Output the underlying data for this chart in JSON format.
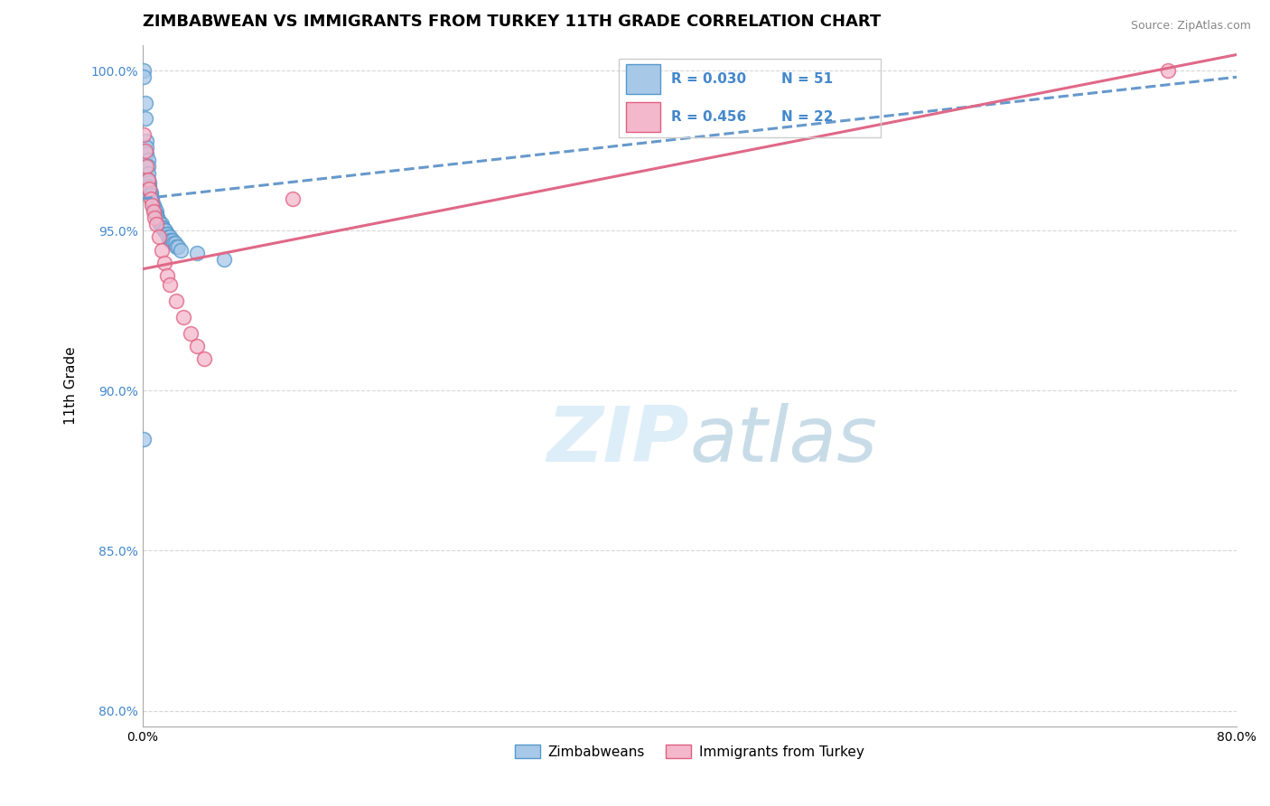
{
  "title": "ZIMBABWEAN VS IMMIGRANTS FROM TURKEY 11TH GRADE CORRELATION CHART",
  "source_text": "Source: ZipAtlas.com",
  "ylabel": "11th Grade",
  "r_zimbabwean": 0.03,
  "n_zimbabwean": 51,
  "r_turkey": 0.456,
  "n_turkey": 22,
  "xlim": [
    0.0,
    0.8
  ],
  "ylim": [
    0.795,
    1.008
  ],
  "ytick_labels": [
    "80.0%",
    "85.0%",
    "90.0%",
    "95.0%",
    "100.0%"
  ],
  "ytick_values": [
    0.8,
    0.85,
    0.9,
    0.95,
    1.0
  ],
  "xtick_values": [
    0.0,
    0.1,
    0.2,
    0.3,
    0.4,
    0.5,
    0.6,
    0.7,
    0.8
  ],
  "xtick_labels": [
    "0.0%",
    "",
    "",
    "",
    "",
    "",
    "",
    "",
    "80.0%"
  ],
  "color_zimbabwean": "#a8c8e8",
  "color_turkey": "#f4b8cc",
  "color_zimbabwean_edge": "#5599cc",
  "color_turkey_edge": "#e06080",
  "color_zimbabwean_line": "#6699cc",
  "color_turkey_line": "#e06888",
  "color_blue_text": "#4488cc",
  "watermark_color": "#ddeef8",
  "blue_line_x0": 0.0,
  "blue_line_y0": 0.96,
  "blue_line_x1": 0.8,
  "blue_line_y1": 0.998,
  "pink_line_x0": 0.0,
  "pink_line_y0": 0.938,
  "pink_line_x1": 0.8,
  "pink_line_y1": 1.005,
  "zimbabwean_x": [
    0.001,
    0.001,
    0.002,
    0.002,
    0.003,
    0.003,
    0.003,
    0.004,
    0.004,
    0.004,
    0.004,
    0.005,
    0.005,
    0.005,
    0.006,
    0.006,
    0.007,
    0.007,
    0.008,
    0.008,
    0.009,
    0.009,
    0.01,
    0.01,
    0.01,
    0.011,
    0.011,
    0.012,
    0.012,
    0.013,
    0.014,
    0.015,
    0.015,
    0.016,
    0.016,
    0.017,
    0.018,
    0.018,
    0.019,
    0.02,
    0.02,
    0.021,
    0.022,
    0.023,
    0.024,
    0.025,
    0.026,
    0.028,
    0.04,
    0.06,
    0.001
  ],
  "zimbabwean_y": [
    1.0,
    0.998,
    0.99,
    0.985,
    0.978,
    0.976,
    0.974,
    0.972,
    0.97,
    0.968,
    0.966,
    0.965,
    0.964,
    0.963,
    0.962,
    0.961,
    0.96,
    0.959,
    0.958,
    0.957,
    0.957,
    0.956,
    0.956,
    0.955,
    0.955,
    0.954,
    0.954,
    0.953,
    0.953,
    0.952,
    0.952,
    0.951,
    0.951,
    0.95,
    0.95,
    0.95,
    0.949,
    0.949,
    0.948,
    0.948,
    0.947,
    0.947,
    0.947,
    0.946,
    0.946,
    0.945,
    0.945,
    0.944,
    0.943,
    0.941,
    0.885
  ],
  "turkey_x": [
    0.001,
    0.002,
    0.003,
    0.004,
    0.005,
    0.006,
    0.007,
    0.008,
    0.009,
    0.01,
    0.012,
    0.014,
    0.016,
    0.018,
    0.02,
    0.025,
    0.03,
    0.035,
    0.04,
    0.045,
    0.75,
    0.11
  ],
  "turkey_y": [
    0.98,
    0.975,
    0.97,
    0.966,
    0.963,
    0.96,
    0.958,
    0.956,
    0.954,
    0.952,
    0.948,
    0.944,
    0.94,
    0.936,
    0.933,
    0.928,
    0.923,
    0.918,
    0.914,
    0.91,
    1.0,
    0.96
  ],
  "title_fontsize": 13,
  "axis_label_fontsize": 11,
  "tick_fontsize": 10,
  "legend_fontsize": 11
}
